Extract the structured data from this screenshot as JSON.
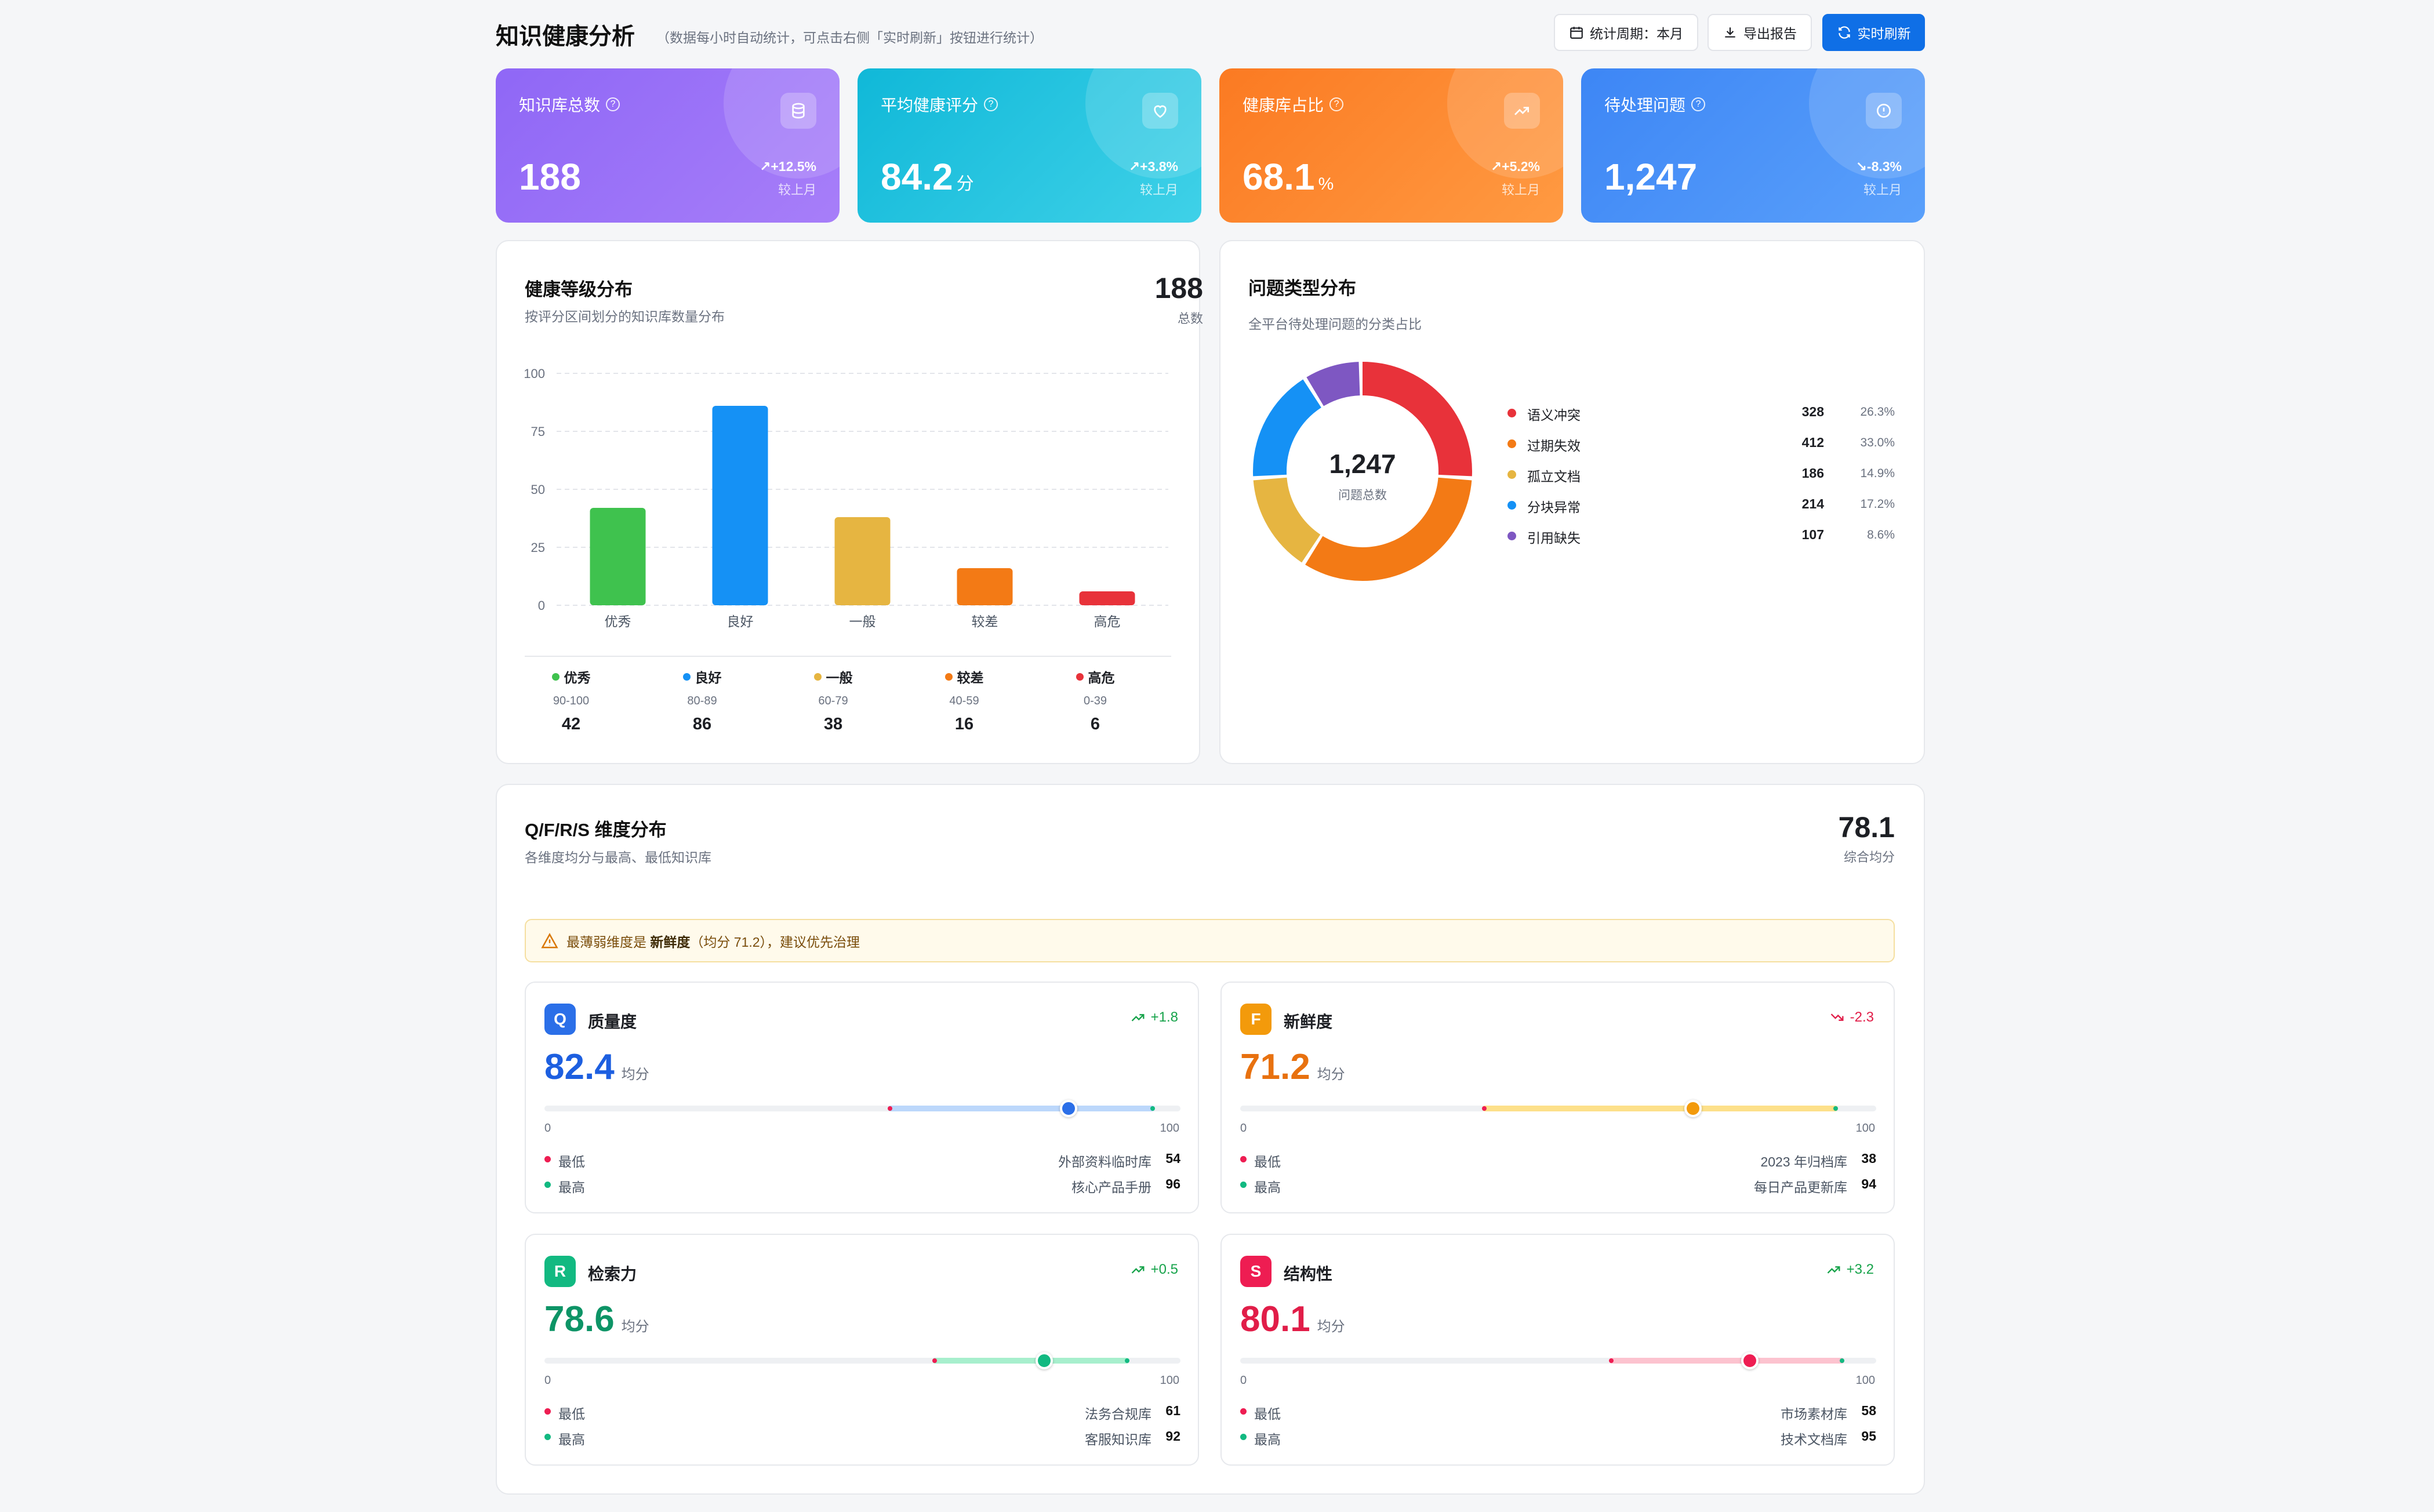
{
  "header": {
    "title": "知识健康分析",
    "subtitle": "（数据每小时自动统计，可点击右侧「实时刷新」按钮进行统计）",
    "period_label": "统计周期：本月",
    "export_label": "导出报告",
    "refresh_label": "实时刷新"
  },
  "kpis": [
    {
      "label": "知识库总数",
      "value": "188",
      "unit": "",
      "trend": "+12.5%",
      "trend_sub": "较上月",
      "icon": "database-icon",
      "gradient": [
        "#8f67f6",
        "#a77ef9"
      ]
    },
    {
      "label": "平均健康评分",
      "value": "84.2",
      "unit": "分",
      "trend": "+3.8%",
      "trend_sub": "较上月",
      "icon": "heart-icon",
      "gradient": [
        "#10b8d8",
        "#3fd1e8"
      ]
    },
    {
      "label": "健康库占比",
      "value": "68.1",
      "unit": "%",
      "trend": "+5.2%",
      "trend_sub": "较上月",
      "icon": "trend-up-icon",
      "gradient": [
        "#fb7a22",
        "#ff9a42"
      ]
    },
    {
      "label": "待处理问题",
      "value": "1,247",
      "unit": "",
      "trend": "-8.3%",
      "trend_sub": "较上月",
      "icon": "alert-icon",
      "gradient": [
        "#3d86f5",
        "#5aa0fb"
      ]
    }
  ],
  "health": {
    "title": "健康等级分布",
    "subtitle": "按评分区间划分的知识库数量分布",
    "total": "188",
    "total_label": "总数"
  },
  "chart_data": {
    "type": "bar",
    "categories": [
      "优秀",
      "良好",
      "一般",
      "较差",
      "高危"
    ],
    "values": [
      42,
      86,
      38,
      16,
      6
    ],
    "ylim": [
      0,
      100
    ],
    "yticks": [
      0,
      25,
      50,
      75,
      100
    ],
    "grid": true,
    "colors": [
      "#3fc24e",
      "#1591f5",
      "#e6b541",
      "#f37a15",
      "#e8323a"
    ]
  },
  "grades": [
    {
      "name": "优秀",
      "range": "90-100",
      "count": "42",
      "color": "#3fc24e"
    },
    {
      "name": "良好",
      "range": "80-89",
      "count": "86",
      "color": "#1591f5"
    },
    {
      "name": "一般",
      "range": "60-79",
      "count": "38",
      "color": "#e6b541"
    },
    {
      "name": "较差",
      "range": "40-59",
      "count": "16",
      "color": "#f37a15"
    },
    {
      "name": "高危",
      "range": "0-39",
      "count": "6",
      "color": "#e8323a"
    }
  ],
  "issues": {
    "title": "问题类型分布",
    "subtitle": "全平台待处理问题的分类占比",
    "total": "1,247",
    "total_label": "问题总数",
    "items": [
      {
        "name": "语义冲突",
        "count": 328,
        "pct": "26.3%",
        "color": "#e8323a"
      },
      {
        "name": "过期失效",
        "count": 412,
        "pct": "33.0%",
        "color": "#f37a15"
      },
      {
        "name": "孤立文档",
        "count": 186,
        "pct": "14.9%",
        "color": "#e6b541"
      },
      {
        "name": "分块异常",
        "count": 214,
        "pct": "17.2%",
        "color": "#1591f5"
      },
      {
        "name": "引用缺失",
        "count": 107,
        "pct": "8.6%",
        "color": "#7e57c2"
      }
    ]
  },
  "qfrs": {
    "title": "Q/F/R/S 维度分布",
    "subtitle": "各维度均分与最高、最低知识库",
    "overall": "78.1",
    "overall_label": "综合均分",
    "warning_prefix": "最薄弱维度是",
    "warning_dim": "新鲜度",
    "warning_suffix": "（均分 71.2），建议优先治理",
    "scale_min": "0",
    "scale_max": "100",
    "unit": "均分",
    "min_label": "最低",
    "max_label": "最高",
    "dims": [
      {
        "letter": "Q",
        "name": "质量度",
        "score": "82.4",
        "score_num": 82.4,
        "trend": "+1.8",
        "trend_dir": "up",
        "min_kb": "外部资料临时库",
        "min": 54,
        "max_kb": "核心产品手册",
        "max": 96,
        "color": "#2b6fe8",
        "track_color": "#bcd7fb"
      },
      {
        "letter": "F",
        "name": "新鲜度",
        "score": "71.2",
        "score_num": 71.2,
        "trend": "-2.3",
        "trend_dir": "down",
        "min_kb": "2023 年归档库",
        "min": 38,
        "max_kb": "每日产品更新库",
        "max": 94,
        "color": "#f39a0b",
        "track_color": "#fde08a"
      },
      {
        "letter": "R",
        "name": "检索力",
        "score": "78.6",
        "score_num": 78.6,
        "trend": "+0.5",
        "trend_dir": "up",
        "min_kb": "法务合规库",
        "min": 61,
        "max_kb": "客服知识库",
        "max": 92,
        "color": "#12b981",
        "track_color": "#a7efcd"
      },
      {
        "letter": "S",
        "name": "结构性",
        "score": "80.1",
        "score_num": 80.1,
        "trend": "+3.2",
        "trend_dir": "up",
        "min_kb": "市场素材库",
        "min": 58,
        "max_kb": "技术文档库",
        "max": 95,
        "color": "#ee1d52",
        "track_color": "#fcc3cf"
      }
    ]
  }
}
